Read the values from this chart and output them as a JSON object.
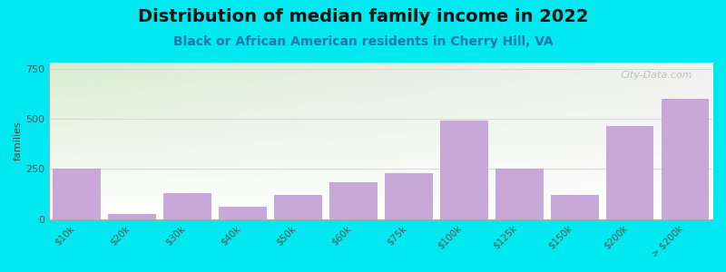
{
  "title": "Distribution of median family income in 2022",
  "subtitle": "Black or African American residents in Cherry Hill, VA",
  "ylabel": "families",
  "categories": [
    "$10k",
    "$20k",
    "$30k",
    "$40k",
    "$50k",
    "$60k",
    "$75k",
    "$100k",
    "$125k",
    "$150k",
    "$200k",
    "> $200k"
  ],
  "values": [
    250,
    25,
    130,
    60,
    120,
    185,
    230,
    490,
    250,
    120,
    465,
    600
  ],
  "bar_color": "#c8a8d8",
  "bar_edge_color": "#b898c8",
  "background_color": "#00e8f0",
  "plot_bg_color_topleft": "#d8ecd0",
  "plot_bg_color_topright": "#f0f0f0",
  "plot_bg_color_bottom": "#ffffff",
  "title_fontsize": 14,
  "subtitle_fontsize": 10,
  "ylabel_fontsize": 8,
  "yticks": [
    0,
    250,
    500,
    750
  ],
  "ylim": [
    0,
    780
  ],
  "watermark": "City-Data.com"
}
